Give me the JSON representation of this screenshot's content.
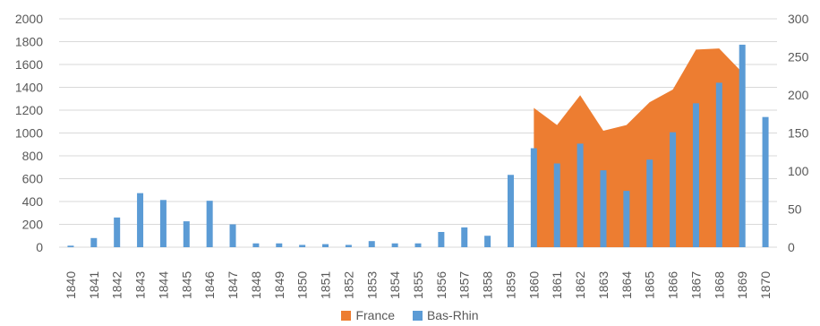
{
  "colors": {
    "france": "#ED7D31",
    "bas_rhin": "#5B9BD5",
    "grid": "#d9d9d9",
    "text": "#595959"
  },
  "chart_data": {
    "type": "combo-bar-area",
    "categories": [
      "1840",
      "1841",
      "1842",
      "1843",
      "1844",
      "1845",
      "1846",
      "1847",
      "1848",
      "1849",
      "1850",
      "1851",
      "1852",
      "1853",
      "1854",
      "1855",
      "1856",
      "1857",
      "1858",
      "1859",
      "1860",
      "1861",
      "1862",
      "1863",
      "1864",
      "1865",
      "1866",
      "1867",
      "1868",
      "1869",
      "1870"
    ],
    "y_left": {
      "ticks": [
        0,
        200,
        400,
        600,
        800,
        1000,
        1200,
        1400,
        1600,
        1800,
        2000
      ],
      "tick_labels": [
        "0",
        "200",
        "400",
        "600",
        "800",
        "1000",
        "1200",
        "1400",
        "1600",
        "1800",
        "2000"
      ],
      "ylim": [
        0,
        2000
      ]
    },
    "y_right": {
      "ticks": [
        0,
        50,
        100,
        150,
        200,
        250,
        300
      ],
      "tick_labels": [
        "0",
        "50",
        "100",
        "150",
        "200",
        "250",
        "300"
      ],
      "ylim": [
        0,
        300
      ]
    },
    "grid": true,
    "legend_position": "bottom",
    "series": [
      {
        "name": "France",
        "kind": "area",
        "axis": "left",
        "values": [
          null,
          null,
          null,
          null,
          null,
          null,
          null,
          null,
          null,
          null,
          null,
          null,
          null,
          null,
          null,
          null,
          null,
          null,
          null,
          null,
          1220,
          1070,
          1330,
          1020,
          1070,
          1270,
          1380,
          1730,
          1740,
          1530,
          null
        ]
      },
      {
        "name": "Bas-Rhin",
        "kind": "bar",
        "axis": "right",
        "values": [
          2,
          12,
          39,
          71,
          62,
          34,
          61,
          30,
          5,
          5,
          3,
          4,
          3,
          8,
          5,
          5,
          20,
          26,
          15,
          95,
          130,
          110,
          136,
          101,
          74,
          115,
          151,
          189,
          216,
          266,
          171
        ]
      }
    ]
  },
  "legend": {
    "france": "France",
    "bas_rhin": "Bas-Rhin"
  }
}
